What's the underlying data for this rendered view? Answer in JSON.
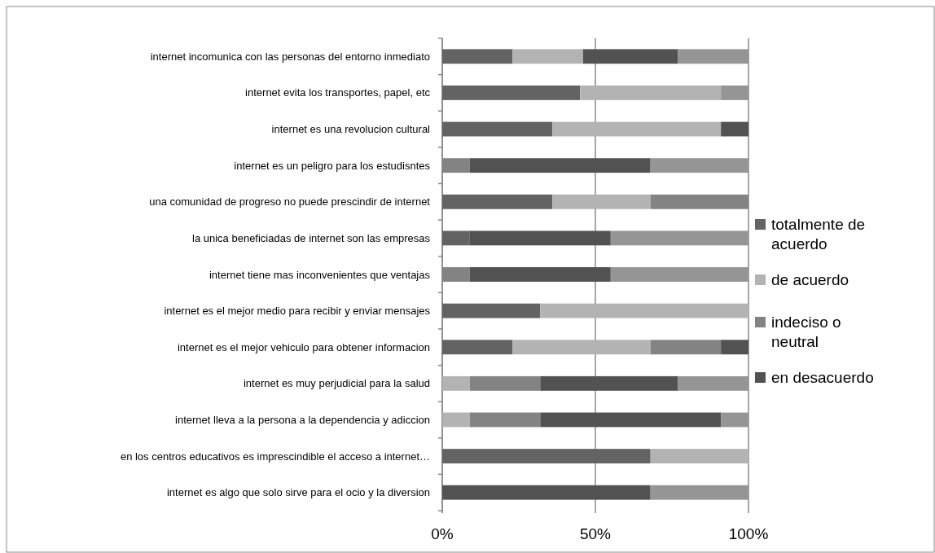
{
  "chart_data": {
    "type": "bar",
    "orientation": "horizontal",
    "stacked": true,
    "categories": [
      "internet incomunica con las personas del entorno inmediato",
      "internet evita los transportes, papel, etc",
      "internet es una revolucion cultural",
      "internet es un peligro para los estudisntes",
      "una comunidad de progreso no puede prescindir de internet",
      "la unica beneficiadas de internet son las empresas",
      "internet tiene mas inconvenientes que ventajas",
      "internet es el mejor medio para recibir y enviar mensajes",
      "internet es el mejor vehiculo para obtener informacion",
      "internet es muy perjudicial para la salud",
      "internet lleva a la persona a la dependencia y adiccion",
      "en los centros educativos es imprescindible el acceso a internet…",
      "internet es algo que solo sirve para el ocio y la diversion"
    ],
    "series": [
      {
        "name": "totalmente de acuerdo",
        "color": "#636363",
        "values": [
          23,
          45,
          36,
          0,
          36,
          9,
          0,
          32,
          23,
          0,
          0,
          68,
          0
        ]
      },
      {
        "name": "de acuerdo",
        "color": "#b3b3b3",
        "values": [
          23,
          46,
          55,
          0,
          32,
          0,
          0,
          68,
          45,
          9,
          9,
          32,
          0
        ]
      },
      {
        "name": "indeciso o neutral",
        "color": "#838383",
        "values": [
          0,
          0,
          0,
          9,
          32,
          0,
          9,
          0,
          23,
          23,
          23,
          0,
          0
        ]
      },
      {
        "name": "en desacuerdo",
        "color": "#525252",
        "values": [
          31,
          0,
          9,
          59,
          0,
          46,
          46,
          0,
          9,
          45,
          59,
          0,
          68
        ]
      },
      {
        "color": "#959595",
        "values": [
          23,
          9,
          0,
          32,
          0,
          45,
          45,
          0,
          0,
          23,
          9,
          0,
          32
        ]
      }
    ],
    "xlim": [
      0,
      100
    ],
    "xticks": [
      {
        "value": 0,
        "label": "0%"
      },
      {
        "value": 50,
        "label": "50%"
      },
      {
        "value": 100,
        "label": "100%"
      }
    ],
    "grid": "x",
    "legend": "right"
  }
}
